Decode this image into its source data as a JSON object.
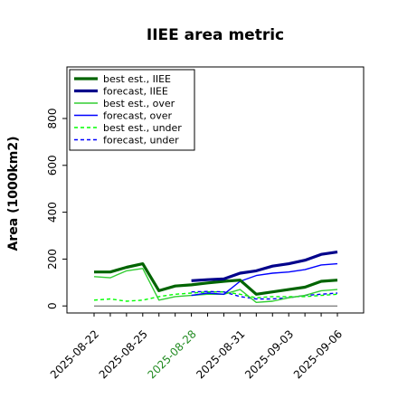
{
  "chart_data": {
    "type": "line",
    "title": "IIEE area metric",
    "ylabel": "Area (1000km2)",
    "xlabel": "",
    "ylim": [
      -30,
      1020
    ],
    "yticks": [
      0,
      200,
      400,
      600,
      800
    ],
    "x": [
      "2025-08-22",
      "2025-08-23",
      "2025-08-24",
      "2025-08-25",
      "2025-08-26",
      "2025-08-27",
      "2025-08-28",
      "2025-08-29",
      "2025-08-30",
      "2025-08-31",
      "2025-09-01",
      "2025-09-02",
      "2025-09-03",
      "2025-09-04",
      "2025-09-05",
      "2025-09-06"
    ],
    "xtick_labels": [
      "2025-08-22",
      "2025-08-25",
      "2025-08-28",
      "2025-08-31",
      "2025-09-03",
      "2025-09-06"
    ],
    "xtick_positions": [
      0,
      3,
      6,
      9,
      12,
      15
    ],
    "highlighted_tick": "2025-08-28",
    "highlight_color": "#228b22",
    "baseline": 0,
    "legend_position": "upper left",
    "series": [
      {
        "name": "best est., IIEE",
        "color": "#006400",
        "dash": "solid",
        "width": 3.2,
        "x": [
          0,
          1,
          2,
          3,
          4,
          5,
          6,
          7,
          8,
          9,
          10,
          11,
          12,
          13,
          14,
          15
        ],
        "values": [
          145,
          145,
          165,
          180,
          65,
          85,
          90,
          98,
          105,
          110,
          50,
          60,
          70,
          80,
          105,
          110
        ]
      },
      {
        "name": "forecast, IIEE",
        "color": "#00008b",
        "dash": "solid",
        "width": 3.2,
        "x": [
          6,
          7,
          8,
          9,
          10,
          11,
          12,
          13,
          14,
          15
        ],
        "values": [
          108,
          112,
          115,
          140,
          150,
          170,
          180,
          195,
          220,
          230
        ]
      },
      {
        "name": "best est., over",
        "color": "#32cd32",
        "dash": "solid",
        "width": 1.4,
        "x": [
          0,
          1,
          2,
          3,
          4,
          5,
          6,
          7,
          8,
          9,
          10,
          11,
          12,
          13,
          14,
          15
        ],
        "values": [
          125,
          120,
          150,
          160,
          25,
          40,
          45,
          50,
          50,
          70,
          15,
          20,
          35,
          45,
          65,
          70
        ]
      },
      {
        "name": "forecast, over",
        "color": "#0000ff",
        "dash": "solid",
        "width": 1.4,
        "x": [
          6,
          7,
          8,
          9,
          10,
          11,
          12,
          13,
          14,
          15
        ],
        "values": [
          45,
          55,
          50,
          105,
          130,
          140,
          145,
          155,
          175,
          180
        ]
      },
      {
        "name": "best est., under",
        "color": "#00ff00",
        "dash": "dashed",
        "width": 1.4,
        "x": [
          0,
          1,
          2,
          3,
          4,
          5,
          6,
          7,
          8,
          9,
          10,
          11,
          12,
          13,
          14,
          15
        ],
        "values": [
          25,
          30,
          20,
          25,
          40,
          50,
          55,
          60,
          60,
          50,
          35,
          40,
          40,
          40,
          45,
          50
        ]
      },
      {
        "name": "forecast, under",
        "color": "#0000ff",
        "dash": "dashed",
        "width": 1.4,
        "x": [
          6,
          7,
          8,
          9,
          10,
          11,
          12,
          13,
          14,
          15
        ],
        "values": [
          60,
          62,
          60,
          40,
          30,
          30,
          35,
          45,
          50,
          55
        ]
      }
    ]
  }
}
